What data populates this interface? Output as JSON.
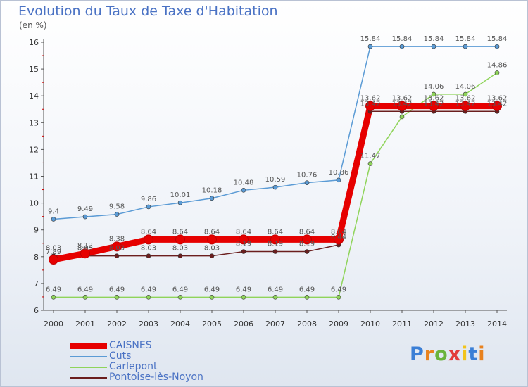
{
  "header": {
    "title": "Evolution du Taux de Taxe d'Habitation",
    "unit": "(en %)"
  },
  "logo": {
    "text": "Proxiti",
    "colors": [
      "#3b7fd6",
      "#e8821f",
      "#6ab33c",
      "#e23c3c",
      "#f2c41c",
      "#3b7fd6",
      "#e8821f"
    ]
  },
  "chart_data": {
    "type": "line",
    "x": [
      "2000",
      "2001",
      "2002",
      "2003",
      "2004",
      "2005",
      "2006",
      "2007",
      "2008",
      "2009",
      "2010",
      "2011",
      "2012",
      "2013",
      "2014"
    ],
    "ylim": [
      6,
      16
    ],
    "yticks": [
      6,
      7,
      8,
      9,
      10,
      11,
      12,
      13,
      14,
      15,
      16
    ],
    "grid": false,
    "legend_position": "bottom-left",
    "series": [
      {
        "name": "CAISNES",
        "color": "#e60000",
        "emphasis": true,
        "values": [
          7.89,
          8.12,
          8.38,
          8.64,
          8.64,
          8.64,
          8.64,
          8.64,
          8.64,
          8.64,
          13.62,
          13.62,
          13.62,
          13.62,
          13.62
        ],
        "labels": [
          "7.89",
          "8.12",
          "8.38",
          "8.64",
          "8.64",
          "8.64",
          "8.64",
          "8.64",
          "8.64",
          "8.64",
          "13.62",
          "13.62",
          "13.62",
          "13.62",
          "13.62"
        ]
      },
      {
        "name": "Cuts",
        "color": "#5b9bd5",
        "values": [
          9.4,
          9.49,
          9.58,
          9.86,
          10.01,
          10.18,
          10.48,
          10.59,
          10.76,
          10.86,
          15.84,
          15.84,
          15.84,
          15.84,
          15.84
        ],
        "labels": [
          "9.4",
          "9.49",
          "9.58",
          "9.86",
          "10.01",
          "10.18",
          "10.48",
          "10.59",
          "10.76",
          "10.86",
          "15.84",
          "15.84",
          "15.84",
          "15.84",
          "15.84"
        ]
      },
      {
        "name": "Carlepont",
        "color": "#8fd45a",
        "values": [
          6.49,
          6.49,
          6.49,
          6.49,
          6.49,
          6.49,
          6.49,
          6.49,
          6.49,
          6.49,
          11.47,
          13.22,
          14.06,
          14.06,
          14.86
        ],
        "labels": [
          "6.49",
          "6.49",
          "6.49",
          "6.49",
          "6.49",
          "6.49",
          "6.49",
          "6.49",
          "6.49",
          "6.49",
          "11.47",
          "",
          "14.06",
          "14.06",
          "14.86"
        ]
      },
      {
        "name": "Pontoise-lès-Noyon",
        "color": "#6b1e1e",
        "values": [
          8.03,
          8.03,
          8.03,
          8.03,
          8.03,
          8.03,
          8.19,
          8.19,
          8.19,
          8.44,
          13.42,
          13.42,
          13.42,
          13.42,
          13.42
        ],
        "labels": [
          "8.03",
          "8.03",
          "8.03",
          "8.03",
          "8.03",
          "8.03",
          "8.19",
          "8.19",
          "8.19",
          "8.44",
          "13.42",
          "13.42",
          "13.42",
          "13.42",
          "13.42"
        ]
      }
    ]
  }
}
